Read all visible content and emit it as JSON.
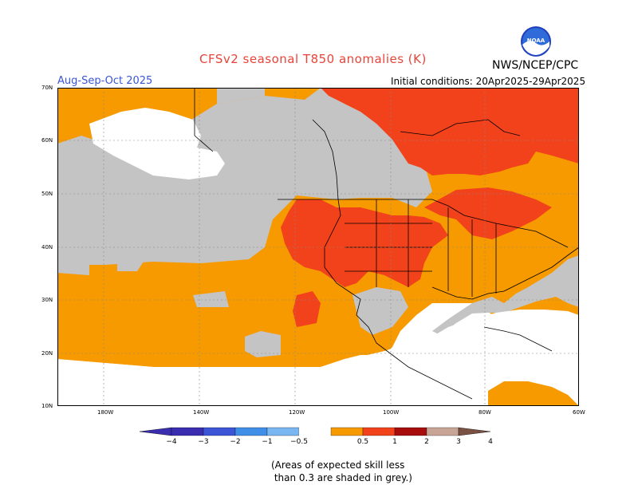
{
  "title": "CFSv2 seasonal T850 anomalies (K)",
  "agency": "NWS/NCEP/CPC",
  "season": "Aug-Sep-Oct 2025",
  "initial_conditions": "Initial conditions: 20Apr2025-29Apr2025",
  "logo_text": "NOAA",
  "lat_labels": [
    "70N",
    "60N",
    "50N",
    "40N",
    "30N",
    "20N",
    "10N"
  ],
  "lon_labels": [
    "180W",
    "140W",
    "120W",
    "100W",
    "80W",
    "60W"
  ],
  "colorbar": {
    "labels": [
      "−4",
      "−3",
      "−2",
      "−1",
      "−0.5",
      "0.5",
      "1",
      "2",
      "3",
      "4"
    ],
    "colors": [
      "#3a2db0",
      "#3b55d6",
      "#3f8ee8",
      "#7ab6f2",
      "#ffffff",
      "#f79a00",
      "#f2421b",
      "#a80d0d",
      "#c8a496",
      "#7a5142"
    ]
  },
  "note": "(Areas of expected skill less\n than 0.3 are shaded in grey.)",
  "colors": {
    "grey_low_skill": "#c4c4c4",
    "anom_0_5_to_1": "#f79a00",
    "anom_1_to_2": "#f2421b",
    "title_red": "#e8443a",
    "season_blue": "#3a55d6"
  }
}
